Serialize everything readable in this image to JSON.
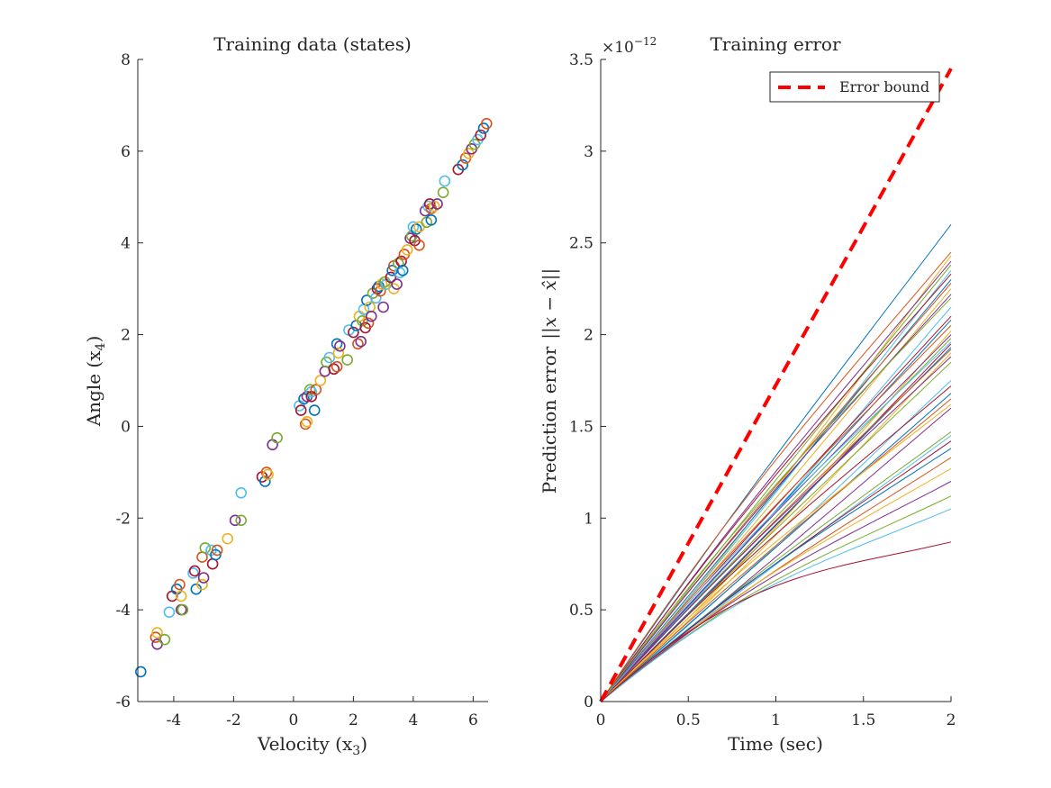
{
  "chart_data": [
    {
      "type": "scatter",
      "title": "Training data (states)",
      "xlabel": "Velocity (x",
      "xlabel_sub": "3",
      "xlabel_close": ")",
      "ylabel": "Angle (x",
      "ylabel_sub": "4",
      "ylabel_close": ")",
      "xlim": [
        -5.2,
        6.5
      ],
      "ylim": [
        -6,
        8
      ],
      "xticks": [
        -4,
        -2,
        0,
        2,
        4,
        6
      ],
      "xtick_labels": [
        "-4",
        "-2",
        "0",
        "2",
        "4",
        "6"
      ],
      "yticks": [
        -6,
        -4,
        -2,
        0,
        2,
        4,
        6,
        8
      ],
      "ytick_labels": [
        "-6",
        "-4",
        "-2",
        "0",
        "2",
        "4",
        "6",
        "8"
      ],
      "grid": false,
      "marker": "open-circle",
      "colors": [
        "#0072BD",
        "#D95319",
        "#EDB120",
        "#7E2F8E",
        "#77AC30",
        "#4DBEEE",
        "#A2142F"
      ],
      "points": [
        [
          -5.1,
          -5.35
        ],
        [
          -4.6,
          -4.6
        ],
        [
          -4.55,
          -4.5
        ],
        [
          -4.55,
          -4.75
        ],
        [
          -4.3,
          -4.65
        ],
        [
          -4.15,
          -4.05
        ],
        [
          -4.05,
          -3.7
        ],
        [
          -3.9,
          -3.55
        ],
        [
          -3.8,
          -3.45
        ],
        [
          -3.75,
          -3.7
        ],
        [
          -3.75,
          -4.0
        ],
        [
          -3.7,
          -4.0
        ],
        [
          -3.35,
          -3.2
        ],
        [
          -3.3,
          -3.15
        ],
        [
          -3.25,
          -3.55
        ],
        [
          -3.05,
          -2.85
        ],
        [
          -3.05,
          -3.45
        ],
        [
          -3.0,
          -3.3
        ],
        [
          -2.95,
          -2.65
        ],
        [
          -2.75,
          -2.7
        ],
        [
          -2.7,
          -3.0
        ],
        [
          -2.6,
          -2.8
        ],
        [
          -2.55,
          -2.7
        ],
        [
          -2.2,
          -2.45
        ],
        [
          -1.95,
          -2.05
        ],
        [
          -1.75,
          -2.05
        ],
        [
          -1.75,
          -1.45
        ],
        [
          -1.05,
          -1.1
        ],
        [
          -0.95,
          -1.2
        ],
        [
          -0.9,
          -1.0
        ],
        [
          -0.85,
          -1.05
        ],
        [
          -0.7,
          -0.4
        ],
        [
          -0.55,
          -0.25
        ],
        [
          0.2,
          0.45
        ],
        [
          0.25,
          0.35
        ],
        [
          0.35,
          0.6
        ],
        [
          0.4,
          0.05
        ],
        [
          0.45,
          0.1
        ],
        [
          0.45,
          0.65
        ],
        [
          0.55,
          0.8
        ],
        [
          0.6,
          0.75
        ],
        [
          0.6,
          0.65
        ],
        [
          0.7,
          0.35
        ],
        [
          0.75,
          0.8
        ],
        [
          0.9,
          1.0
        ],
        [
          1.05,
          1.2
        ],
        [
          1.1,
          1.4
        ],
        [
          1.2,
          1.5
        ],
        [
          1.35,
          1.25
        ],
        [
          1.45,
          1.8
        ],
        [
          1.45,
          1.3
        ],
        [
          1.5,
          1.6
        ],
        [
          1.55,
          1.75
        ],
        [
          1.8,
          1.45
        ],
        [
          1.85,
          2.1
        ],
        [
          2.0,
          2.05
        ],
        [
          2.1,
          2.2
        ],
        [
          2.15,
          1.8
        ],
        [
          2.2,
          2.4
        ],
        [
          2.25,
          1.85
        ],
        [
          2.3,
          2.3
        ],
        [
          2.35,
          2.55
        ],
        [
          2.4,
          2.15
        ],
        [
          2.45,
          2.75
        ],
        [
          2.5,
          2.25
        ],
        [
          2.55,
          2.6
        ],
        [
          2.6,
          2.4
        ],
        [
          2.65,
          2.9
        ],
        [
          2.75,
          2.8
        ],
        [
          2.8,
          3.0
        ],
        [
          2.85,
          3.05
        ],
        [
          2.9,
          2.95
        ],
        [
          2.95,
          3.1
        ],
        [
          3.0,
          2.6
        ],
        [
          3.05,
          3.15
        ],
        [
          3.1,
          3.1
        ],
        [
          3.25,
          3.25
        ],
        [
          3.3,
          3.4
        ],
        [
          3.35,
          3.5
        ],
        [
          3.35,
          3.0
        ],
        [
          3.45,
          3.1
        ],
        [
          3.5,
          3.55
        ],
        [
          3.55,
          3.35
        ],
        [
          3.6,
          3.6
        ],
        [
          3.65,
          3.4
        ],
        [
          3.7,
          3.75
        ],
        [
          3.8,
          3.85
        ],
        [
          3.9,
          4.1
        ],
        [
          3.95,
          4.15
        ],
        [
          4.0,
          4.35
        ],
        [
          4.05,
          4.05
        ],
        [
          4.1,
          4.3
        ],
        [
          4.2,
          3.95
        ],
        [
          4.2,
          4.35
        ],
        [
          4.4,
          4.7
        ],
        [
          4.45,
          4.45
        ],
        [
          4.5,
          4.8
        ],
        [
          4.55,
          4.85
        ],
        [
          4.6,
          4.5
        ],
        [
          4.6,
          4.75
        ],
        [
          4.7,
          4.8
        ],
        [
          4.8,
          4.85
        ],
        [
          5.0,
          5.1
        ],
        [
          5.05,
          5.35
        ],
        [
          5.5,
          5.6
        ],
        [
          5.65,
          5.7
        ],
        [
          5.75,
          5.85
        ],
        [
          5.85,
          5.95
        ],
        [
          5.95,
          6.05
        ],
        [
          6.05,
          6.15
        ],
        [
          6.15,
          6.25
        ],
        [
          6.25,
          6.35
        ],
        [
          6.35,
          6.5
        ],
        [
          6.45,
          6.6
        ]
      ]
    },
    {
      "type": "line",
      "title": "Training error",
      "xlabel": "Time (sec)",
      "ylabel": "Prediction error",
      "ylabel_math": "||x − x̂||",
      "exponent_base": "×10",
      "exponent_power": "−12",
      "xlim": [
        0,
        2
      ],
      "ylim": [
        0,
        3.5
      ],
      "xticks": [
        0,
        0.5,
        1,
        1.5,
        2
      ],
      "xtick_labels": [
        "0",
        "0.5",
        "1",
        "1.5",
        "2"
      ],
      "yticks": [
        0,
        0.5,
        1,
        1.5,
        2,
        2.5,
        3,
        3.5
      ],
      "ytick_labels": [
        "0",
        "0.5",
        "1",
        "1.5",
        "2",
        "2.5",
        "3",
        "3.5"
      ],
      "grid": false,
      "legend": {
        "location": "top-right",
        "entries": [
          "Error bound"
        ]
      },
      "bound": {
        "name": "Error bound",
        "color": "#FF0000",
        "style": "dashed",
        "x": [
          0,
          2
        ],
        "y": [
          0,
          3.45
        ]
      },
      "colors": [
        "#0072BD",
        "#D95319",
        "#EDB120",
        "#7E2F8E",
        "#77AC30",
        "#4DBEEE",
        "#A2142F"
      ],
      "endpoints": [
        2.6,
        2.45,
        2.43,
        2.4,
        2.38,
        2.35,
        2.33,
        2.3,
        2.28,
        2.25,
        2.22,
        2.2,
        2.15,
        2.1,
        2.08,
        2.05,
        2.02,
        2.0,
        1.98,
        1.96,
        1.95,
        1.93,
        1.92,
        1.9,
        1.88,
        1.85,
        1.75,
        1.72,
        1.68,
        1.65,
        1.62,
        1.6,
        1.47,
        1.45,
        1.42,
        1.38,
        1.33,
        1.27,
        1.2,
        1.12,
        1.05,
        0.87
      ],
      "curvature": [
        0.02,
        0.05,
        -0.03,
        0.03,
        0.01,
        -0.02,
        0.04,
        0.0,
        0.02,
        -0.01,
        0.03,
        0.05,
        -0.02,
        0.01,
        0.0,
        0.03,
        -0.04,
        0.02,
        0.01,
        0.04,
        -0.01,
        0.0,
        0.02,
        -0.03,
        0.03,
        0.01,
        -0.02,
        0.04,
        0.0,
        0.02,
        0.05,
        -0.01,
        0.03,
        0.02,
        0.04,
        0.06,
        0.05,
        0.08,
        0.1,
        0.12,
        0.15,
        0.3
      ]
    }
  ]
}
